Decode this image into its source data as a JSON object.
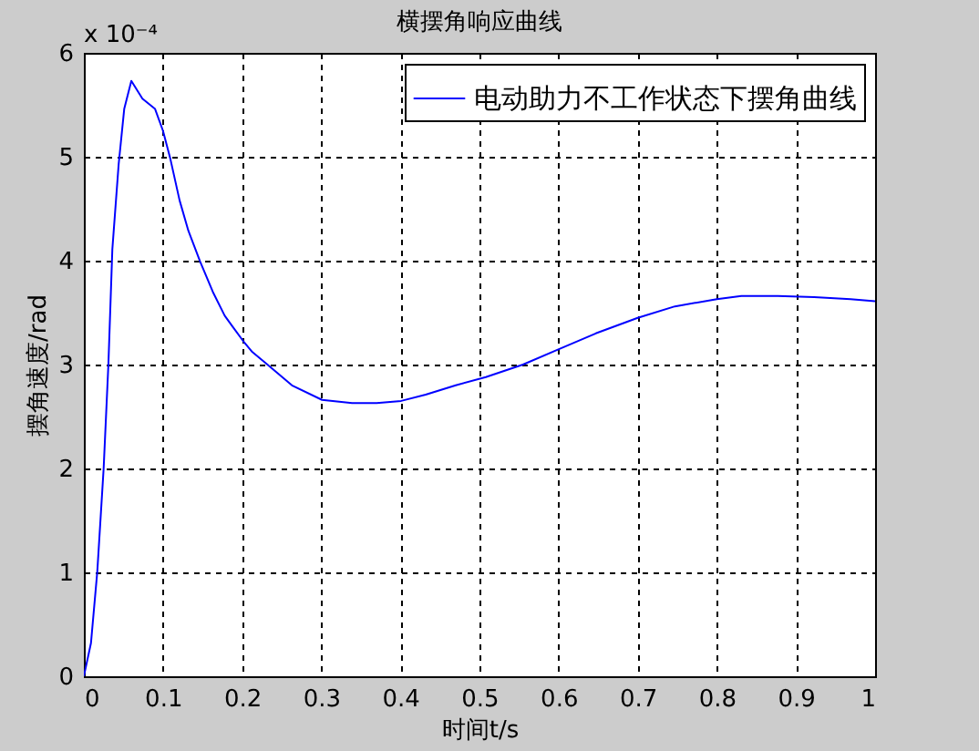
{
  "chart_data": {
    "type": "line",
    "title": "横摆角响应曲线",
    "xlabel": "时间t/s",
    "ylabel": "摆角速度/rad",
    "annotations": [
      "x 10⁻⁴"
    ],
    "x": [
      0,
      0.009,
      0.017,
      0.025,
      0.031,
      0.036,
      0.044,
      0.051,
      0.06,
      0.074,
      0.09,
      0.1,
      0.109,
      0.121,
      0.132,
      0.147,
      0.163,
      0.178,
      0.201,
      0.213,
      0.232,
      0.263,
      0.301,
      0.339,
      0.37,
      0.401,
      0.432,
      0.47,
      0.508,
      0.555,
      0.601,
      0.647,
      0.7,
      0.747,
      0.8,
      0.831,
      0.877,
      0.923,
      0.969,
      1.0
    ],
    "series": [
      {
        "name": "电动助力不工作状态下摆角曲线",
        "color": "#0000ff",
        "values": [
          0,
          0.32,
          1.01,
          2.0,
          3.0,
          4.11,
          4.93,
          5.46,
          5.73,
          5.56,
          5.46,
          5.25,
          4.99,
          4.58,
          4.29,
          3.99,
          3.7,
          3.47,
          3.23,
          3.12,
          3.0,
          2.8,
          2.66,
          2.63,
          2.63,
          2.65,
          2.71,
          2.8,
          2.88,
          3.0,
          3.15,
          3.3,
          3.45,
          3.56,
          3.63,
          3.66,
          3.66,
          3.65,
          3.63,
          3.61
        ]
      }
    ],
    "xlim": [
      0,
      1
    ],
    "xticks": [
      0,
      0.1,
      0.2,
      0.3,
      0.4,
      0.5,
      0.6,
      0.7,
      0.8,
      0.9,
      1
    ],
    "ylim": [
      0,
      6
    ],
    "yticks": [
      0,
      1,
      2,
      3,
      4,
      5,
      6
    ],
    "grid": true,
    "legend": "top right",
    "marker": "none",
    "line_style": "solid"
  }
}
